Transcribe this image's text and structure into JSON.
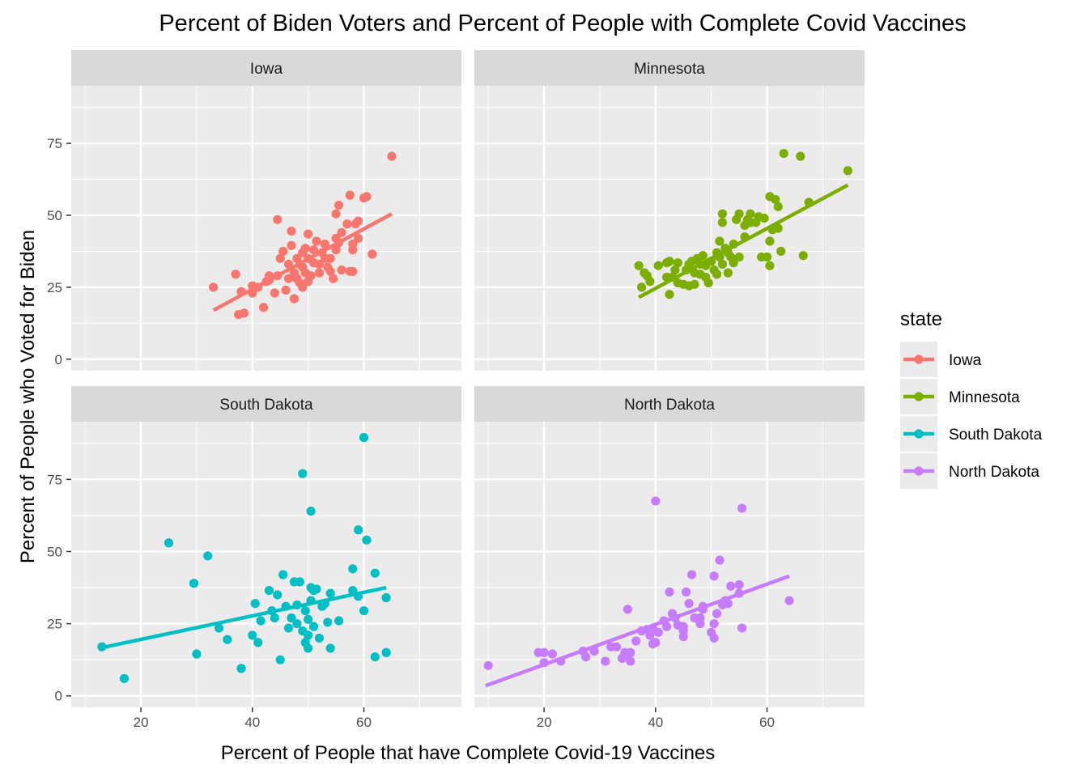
{
  "chart_data": {
    "type": "scatter",
    "title": "Percent of Biden Voters and Percent of People with Complete Covid Vaccines",
    "xlabel": "Percent of People that have Complete Covid-19 Vaccines",
    "ylabel": "Percent of People who Voted for Biden",
    "xlim": [
      7.5,
      77.5
    ],
    "ylim": [
      -4,
      95
    ],
    "x_ticks": [
      20,
      40,
      60
    ],
    "y_ticks": [
      0,
      25,
      50,
      75
    ],
    "grid": true,
    "facet_layout": "2x2",
    "legend": {
      "title": "state",
      "position": "right",
      "entries": [
        "Iowa",
        "Minnesota",
        "South Dakota",
        "North Dakota"
      ]
    },
    "colors": {
      "Iowa": "#F8766D",
      "Minnesota": "#7CAE00",
      "South Dakota": "#00BFC4",
      "North Dakota": "#C77CFF"
    },
    "panels": [
      {
        "name": "Iowa",
        "trend": {
          "x": [
            33,
            65
          ],
          "y": [
            17,
            50.5
          ]
        },
        "points": [
          [
            33,
            25
          ],
          [
            37,
            29.5
          ],
          [
            37.5,
            15.5
          ],
          [
            38,
            23.5
          ],
          [
            38.5,
            16
          ],
          [
            40,
            25.5
          ],
          [
            40,
            23
          ],
          [
            41,
            25
          ],
          [
            42,
            18
          ],
          [
            42.5,
            27
          ],
          [
            43,
            29
          ],
          [
            43,
            27.5
          ],
          [
            44,
            23
          ],
          [
            44.5,
            48.5
          ],
          [
            44.5,
            29
          ],
          [
            45,
            35
          ],
          [
            45.5,
            37.5
          ],
          [
            46,
            24
          ],
          [
            46.5,
            28
          ],
          [
            46.5,
            33
          ],
          [
            47,
            39.5
          ],
          [
            47,
            44.5
          ],
          [
            47.5,
            21
          ],
          [
            47.5,
            30
          ],
          [
            48,
            35
          ],
          [
            48,
            28
          ],
          [
            48.5,
            33
          ],
          [
            48.5,
            26.5
          ],
          [
            49,
            37
          ],
          [
            49,
            32
          ],
          [
            49,
            25
          ],
          [
            49.5,
            30
          ],
          [
            49.5,
            38.5
          ],
          [
            50,
            27
          ],
          [
            50,
            43.5
          ],
          [
            50,
            35
          ],
          [
            50.5,
            29
          ],
          [
            51,
            33.5
          ],
          [
            51,
            38
          ],
          [
            51.5,
            41
          ],
          [
            52,
            33
          ],
          [
            52,
            30
          ],
          [
            52.5,
            37
          ],
          [
            53,
            35
          ],
          [
            53,
            40
          ],
          [
            53.5,
            32
          ],
          [
            54,
            35
          ],
          [
            54,
            30.5
          ],
          [
            54.5,
            28
          ],
          [
            55,
            42
          ],
          [
            55,
            38
          ],
          [
            55,
            50.5
          ],
          [
            55.5,
            40.5
          ],
          [
            55.5,
            53.5
          ],
          [
            56,
            44
          ],
          [
            56,
            31
          ],
          [
            57,
            47
          ],
          [
            57.5,
            30.5
          ],
          [
            57.5,
            57
          ],
          [
            58,
            38
          ],
          [
            58,
            40
          ],
          [
            58,
            30.5
          ],
          [
            58.5,
            47
          ],
          [
            59,
            48
          ],
          [
            59,
            42
          ],
          [
            60,
            56
          ],
          [
            60.5,
            56.5
          ],
          [
            61.5,
            36.5
          ],
          [
            65,
            70.5
          ]
        ]
      },
      {
        "name": "Minnesota",
        "trend": {
          "x": [
            37,
            74.5
          ],
          "y": [
            21.5,
            60.5
          ]
        },
        "points": [
          [
            37,
            32.5
          ],
          [
            37.5,
            25
          ],
          [
            38,
            30
          ],
          [
            38.5,
            29
          ],
          [
            39,
            27
          ],
          [
            40.5,
            32.5
          ],
          [
            42,
            28.5
          ],
          [
            42,
            33.5
          ],
          [
            42.5,
            22.5
          ],
          [
            42.5,
            34
          ],
          [
            43,
            28.5
          ],
          [
            43.5,
            31
          ],
          [
            44,
            33.5
          ],
          [
            44,
            26.5
          ],
          [
            45,
            26
          ],
          [
            45.5,
            31
          ],
          [
            46,
            33
          ],
          [
            46,
            25.5
          ],
          [
            46.5,
            34
          ],
          [
            47,
            26
          ],
          [
            47,
            30
          ],
          [
            47.5,
            35
          ],
          [
            48,
            33
          ],
          [
            48,
            29.5
          ],
          [
            48.5,
            36
          ],
          [
            49,
            32.5
          ],
          [
            49,
            28.5
          ],
          [
            49.5,
            26.5
          ],
          [
            50,
            34
          ],
          [
            50.5,
            31
          ],
          [
            51,
            29.5
          ],
          [
            51,
            37
          ],
          [
            51.5,
            41
          ],
          [
            51.5,
            35.5
          ],
          [
            52,
            33
          ],
          [
            52,
            47.5
          ],
          [
            52,
            50.5
          ],
          [
            52.5,
            38.5
          ],
          [
            53,
            37
          ],
          [
            53,
            30
          ],
          [
            53.5,
            35.5
          ],
          [
            54,
            40
          ],
          [
            54,
            33.5
          ],
          [
            54.5,
            48.5
          ],
          [
            55,
            50.5
          ],
          [
            55,
            35.5
          ],
          [
            56,
            46.5
          ],
          [
            56,
            42.5
          ],
          [
            56.5,
            48.5
          ],
          [
            57,
            50.5
          ],
          [
            57,
            47.5
          ],
          [
            58,
            47.5
          ],
          [
            58.5,
            49.5
          ],
          [
            59,
            35.5
          ],
          [
            59.5,
            49
          ],
          [
            60,
            35.5
          ],
          [
            60.5,
            41
          ],
          [
            60.5,
            32.5
          ],
          [
            60.5,
            56.5
          ],
          [
            61,
            45
          ],
          [
            61.5,
            55.5
          ],
          [
            62,
            53
          ],
          [
            62,
            45.5
          ],
          [
            62.5,
            37.5
          ],
          [
            63,
            71.5
          ],
          [
            66,
            70.5
          ],
          [
            66.5,
            36
          ],
          [
            67.5,
            54.5
          ],
          [
            74.5,
            65.5
          ]
        ]
      },
      {
        "name": "South Dakota",
        "trend": {
          "x": [
            12.5,
            64
          ],
          "y": [
            16.5,
            37.5
          ]
        },
        "points": [
          [
            13,
            17
          ],
          [
            17,
            6
          ],
          [
            25,
            53
          ],
          [
            29.5,
            39
          ],
          [
            30,
            14.5
          ],
          [
            32,
            48.5
          ],
          [
            34,
            23.5
          ],
          [
            35.5,
            19.5
          ],
          [
            38,
            9.5
          ],
          [
            40,
            21
          ],
          [
            40.5,
            32
          ],
          [
            41,
            18.5
          ],
          [
            41.5,
            26
          ],
          [
            43,
            36.5
          ],
          [
            43.5,
            29.5
          ],
          [
            44,
            27
          ],
          [
            44.5,
            35
          ],
          [
            45,
            12.5
          ],
          [
            45.5,
            42
          ],
          [
            46,
            31
          ],
          [
            46.5,
            23.5
          ],
          [
            47,
            27
          ],
          [
            47.5,
            39.5
          ],
          [
            48,
            25
          ],
          [
            48,
            31.5
          ],
          [
            48.5,
            39.5
          ],
          [
            49,
            22.5
          ],
          [
            49,
            77
          ],
          [
            49.5,
            29.5
          ],
          [
            49.5,
            18.5
          ],
          [
            50,
            21
          ],
          [
            50,
            16.5
          ],
          [
            50,
            26.5
          ],
          [
            50.5,
            37.5
          ],
          [
            50.5,
            33
          ],
          [
            50.5,
            64
          ],
          [
            51,
            24
          ],
          [
            51,
            36.5
          ],
          [
            51.5,
            37
          ],
          [
            52,
            20
          ],
          [
            52.5,
            31
          ],
          [
            53,
            32
          ],
          [
            53.5,
            25.5
          ],
          [
            54,
            35.5
          ],
          [
            54,
            16.5
          ],
          [
            55.5,
            26
          ],
          [
            58,
            44
          ],
          [
            58,
            36.5
          ],
          [
            59,
            57.5
          ],
          [
            59,
            34.5
          ],
          [
            60,
            29.5
          ],
          [
            60,
            89.5
          ],
          [
            60.5,
            54
          ],
          [
            62,
            13.5
          ],
          [
            62,
            42.5
          ],
          [
            64,
            34
          ],
          [
            64,
            15
          ]
        ]
      },
      {
        "name": "North Dakota",
        "trend": {
          "x": [
            9.5,
            64
          ],
          "y": [
            3.5,
            41.5
          ]
        },
        "points": [
          [
            10,
            10.5
          ],
          [
            19,
            15
          ],
          [
            20,
            11.5
          ],
          [
            20,
            15
          ],
          [
            21.5,
            14.5
          ],
          [
            23,
            12
          ],
          [
            27,
            15.5
          ],
          [
            27.5,
            13.5
          ],
          [
            29,
            15.5
          ],
          [
            31,
            12
          ],
          [
            32,
            17
          ],
          [
            33,
            17
          ],
          [
            34,
            13
          ],
          [
            34.5,
            15
          ],
          [
            35,
            14
          ],
          [
            35,
            30
          ],
          [
            35.5,
            15
          ],
          [
            35.5,
            12
          ],
          [
            36.5,
            19
          ],
          [
            37.5,
            22.5
          ],
          [
            38.5,
            23
          ],
          [
            39,
            21
          ],
          [
            39.5,
            23.5
          ],
          [
            39.5,
            18
          ],
          [
            40,
            18.5
          ],
          [
            40,
            67.5
          ],
          [
            40.5,
            22
          ],
          [
            41.5,
            26
          ],
          [
            42,
            24
          ],
          [
            42.5,
            36
          ],
          [
            43,
            28.5
          ],
          [
            43.5,
            27
          ],
          [
            44,
            24.5
          ],
          [
            45,
            22.5
          ],
          [
            45,
            24
          ],
          [
            45,
            20.5
          ],
          [
            45.5,
            36
          ],
          [
            46,
            32
          ],
          [
            46.5,
            42
          ],
          [
            47,
            27
          ],
          [
            48,
            27
          ],
          [
            48,
            25
          ],
          [
            48.5,
            30
          ],
          [
            48.5,
            31
          ],
          [
            50,
            22
          ],
          [
            50.5,
            25
          ],
          [
            50.5,
            20
          ],
          [
            50.5,
            41.5
          ],
          [
            51,
            28.5
          ],
          [
            51.5,
            47
          ],
          [
            52,
            31.5
          ],
          [
            52.5,
            33
          ],
          [
            53,
            32
          ],
          [
            53.5,
            38
          ],
          [
            55,
            35.5
          ],
          [
            55,
            38.5
          ],
          [
            55.5,
            23.5
          ],
          [
            55.5,
            65
          ],
          [
            64,
            33
          ]
        ]
      }
    ]
  }
}
